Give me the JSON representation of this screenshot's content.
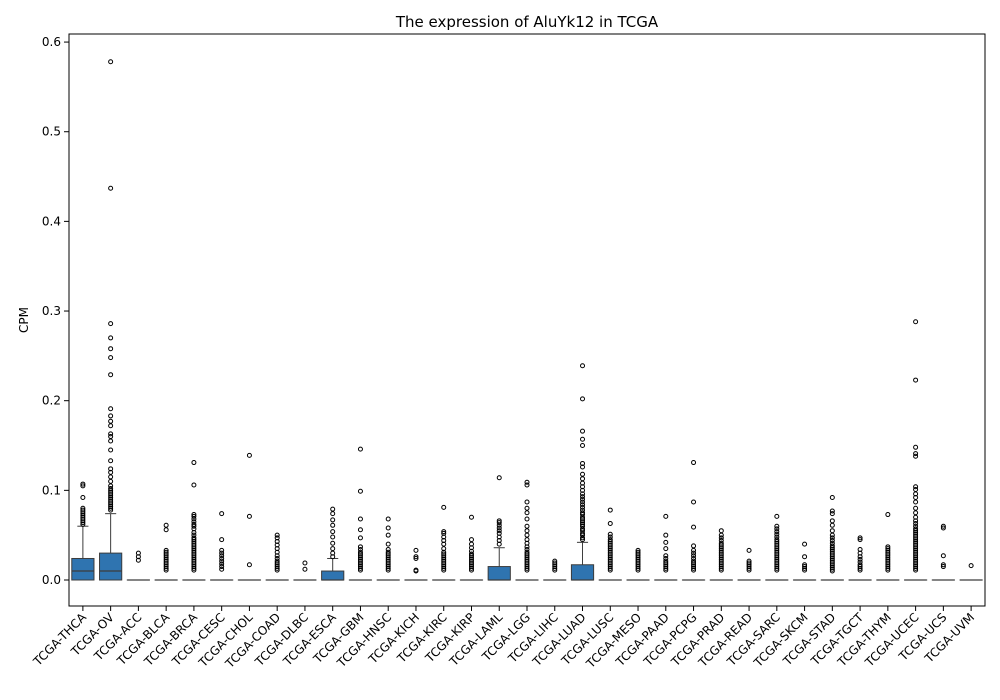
{
  "chart_data": {
    "type": "box",
    "title": "The expression of AluYk12 in TCGA",
    "xlabel": "",
    "ylabel": "CPM",
    "ylim": [
      -0.029,
      0.609
    ],
    "yticks": [
      0.0,
      0.1,
      0.2,
      0.3,
      0.4,
      0.5,
      0.6
    ],
    "ytick_labels": [
      "0.0",
      "0.1",
      "0.2",
      "0.3",
      "0.4",
      "0.5",
      "0.6"
    ],
    "box_color": "#2f74b0",
    "categories": [
      "TCGA-THCA",
      "TCGA-OV",
      "TCGA-ACC",
      "TCGA-BLCA",
      "TCGA-BRCA",
      "TCGA-CESC",
      "TCGA-CHOL",
      "TCGA-COAD",
      "TCGA-DLBC",
      "TCGA-ESCA",
      "TCGA-GBM",
      "TCGA-HNSC",
      "TCGA-KICH",
      "TCGA-KIRC",
      "TCGA-KIRP",
      "TCGA-LAML",
      "TCGA-LGG",
      "TCGA-LIHC",
      "TCGA-LUAD",
      "TCGA-LUSC",
      "TCGA-MESO",
      "TCGA-PAAD",
      "TCGA-PCPG",
      "TCGA-PRAD",
      "TCGA-READ",
      "TCGA-SARC",
      "TCGA-SKCM",
      "TCGA-STAD",
      "TCGA-TGCT",
      "TCGA-THYM",
      "TCGA-UCEC",
      "TCGA-UCS",
      "TCGA-UVM"
    ],
    "boxes": [
      {
        "q1": 0.0,
        "median": 0.01,
        "q3": 0.024,
        "whisker_low": 0.0,
        "whisker_high": 0.06,
        "outliers": [
          0.062,
          0.064,
          0.066,
          0.068,
          0.07,
          0.072,
          0.074,
          0.076,
          0.078,
          0.08,
          0.092,
          0.105,
          0.107
        ]
      },
      {
        "q1": 0.0,
        "median": 0.01,
        "q3": 0.03,
        "whisker_low": 0.0,
        "whisker_high": 0.074,
        "outliers": [
          0.078,
          0.08,
          0.082,
          0.084,
          0.086,
          0.088,
          0.09,
          0.092,
          0.094,
          0.096,
          0.098,
          0.1,
          0.102,
          0.105,
          0.11,
          0.115,
          0.12,
          0.124,
          0.133,
          0.145,
          0.155,
          0.16,
          0.163,
          0.172,
          0.177,
          0.183,
          0.191,
          0.229,
          0.248,
          0.258,
          0.27,
          0.286,
          0.437,
          0.578
        ]
      },
      {
        "q1": 0.0,
        "median": 0.0,
        "q3": 0.0,
        "whisker_low": 0.0,
        "whisker_high": 0.0,
        "outliers": [
          0.022,
          0.026,
          0.03
        ]
      },
      {
        "q1": 0.0,
        "median": 0.0,
        "q3": 0.0,
        "whisker_low": 0.0,
        "whisker_high": 0.0,
        "outliers": [
          0.011,
          0.013,
          0.015,
          0.017,
          0.019,
          0.021,
          0.023,
          0.025,
          0.027,
          0.029,
          0.031,
          0.033,
          0.056,
          0.061
        ]
      },
      {
        "q1": 0.0,
        "median": 0.0,
        "q3": 0.0,
        "whisker_low": 0.0,
        "whisker_high": 0.0,
        "outliers": [
          0.011,
          0.013,
          0.015,
          0.017,
          0.019,
          0.021,
          0.023,
          0.025,
          0.027,
          0.029,
          0.031,
          0.033,
          0.035,
          0.037,
          0.039,
          0.041,
          0.043,
          0.045,
          0.047,
          0.05,
          0.053,
          0.057,
          0.06,
          0.062,
          0.065,
          0.068,
          0.071,
          0.073,
          0.106,
          0.131
        ]
      },
      {
        "q1": 0.0,
        "median": 0.0,
        "q3": 0.0,
        "whisker_low": 0.0,
        "whisker_high": 0.0,
        "outliers": [
          0.012,
          0.015,
          0.018,
          0.021,
          0.024,
          0.027,
          0.03,
          0.033,
          0.045,
          0.074
        ]
      },
      {
        "q1": 0.0,
        "median": 0.0,
        "q3": 0.0,
        "whisker_low": 0.0,
        "whisker_high": 0.0,
        "outliers": [
          0.017,
          0.071,
          0.139
        ]
      },
      {
        "q1": 0.0,
        "median": 0.0,
        "q3": 0.0,
        "whisker_low": 0.0,
        "whisker_high": 0.0,
        "outliers": [
          0.011,
          0.013,
          0.015,
          0.017,
          0.019,
          0.021,
          0.024,
          0.027,
          0.031,
          0.035,
          0.039,
          0.043,
          0.047,
          0.05
        ]
      },
      {
        "q1": 0.0,
        "median": 0.0,
        "q3": 0.0,
        "whisker_low": 0.0,
        "whisker_high": 0.0,
        "outliers": [
          0.012,
          0.019
        ]
      },
      {
        "q1": 0.0,
        "median": 0.0,
        "q3": 0.01,
        "whisker_low": 0.0,
        "whisker_high": 0.024,
        "outliers": [
          0.026,
          0.03,
          0.035,
          0.041,
          0.048,
          0.054,
          0.061,
          0.067,
          0.074,
          0.079
        ]
      },
      {
        "q1": 0.0,
        "median": 0.0,
        "q3": 0.0,
        "whisker_low": 0.0,
        "whisker_high": 0.0,
        "outliers": [
          0.011,
          0.013,
          0.015,
          0.017,
          0.019,
          0.021,
          0.023,
          0.025,
          0.027,
          0.029,
          0.031,
          0.034,
          0.037,
          0.047,
          0.056,
          0.068,
          0.099,
          0.146
        ]
      },
      {
        "q1": 0.0,
        "median": 0.0,
        "q3": 0.0,
        "whisker_low": 0.0,
        "whisker_high": 0.0,
        "outliers": [
          0.011,
          0.013,
          0.015,
          0.017,
          0.019,
          0.021,
          0.023,
          0.025,
          0.027,
          0.029,
          0.031,
          0.034,
          0.04,
          0.05,
          0.058,
          0.068
        ]
      },
      {
        "q1": 0.0,
        "median": 0.0,
        "q3": 0.0,
        "whisker_low": 0.0,
        "whisker_high": 0.0,
        "outliers": [
          0.01,
          0.011,
          0.024,
          0.026,
          0.033
        ]
      },
      {
        "q1": 0.0,
        "median": 0.0,
        "q3": 0.0,
        "whisker_low": 0.0,
        "whisker_high": 0.0,
        "outliers": [
          0.011,
          0.013,
          0.015,
          0.017,
          0.019,
          0.021,
          0.023,
          0.025,
          0.027,
          0.029,
          0.031,
          0.035,
          0.04,
          0.044,
          0.048,
          0.052,
          0.054,
          0.081
        ]
      },
      {
        "q1": 0.0,
        "median": 0.0,
        "q3": 0.0,
        "whisker_low": 0.0,
        "whisker_high": 0.0,
        "outliers": [
          0.011,
          0.013,
          0.015,
          0.017,
          0.019,
          0.021,
          0.023,
          0.025,
          0.027,
          0.029,
          0.032,
          0.036,
          0.04,
          0.045,
          0.07
        ]
      },
      {
        "q1": 0.0,
        "median": 0.0,
        "q3": 0.015,
        "whisker_low": 0.0,
        "whisker_high": 0.036,
        "outliers": [
          0.04,
          0.044,
          0.048,
          0.052,
          0.055,
          0.058,
          0.061,
          0.064,
          0.066,
          0.114
        ]
      },
      {
        "q1": 0.0,
        "median": 0.0,
        "q3": 0.0,
        "whisker_low": 0.0,
        "whisker_high": 0.0,
        "outliers": [
          0.011,
          0.013,
          0.015,
          0.017,
          0.019,
          0.021,
          0.023,
          0.025,
          0.027,
          0.029,
          0.031,
          0.034,
          0.037,
          0.041,
          0.045,
          0.05,
          0.055,
          0.06,
          0.068,
          0.075,
          0.08,
          0.087,
          0.106,
          0.109
        ]
      },
      {
        "q1": 0.0,
        "median": 0.0,
        "q3": 0.0,
        "whisker_low": 0.0,
        "whisker_high": 0.0,
        "outliers": [
          0.011,
          0.013,
          0.015,
          0.017,
          0.019,
          0.021
        ]
      },
      {
        "q1": 0.0,
        "median": 0.0,
        "q3": 0.017,
        "whisker_low": 0.0,
        "whisker_high": 0.042,
        "outliers": [
          0.045,
          0.047,
          0.05,
          0.052,
          0.055,
          0.057,
          0.06,
          0.062,
          0.064,
          0.066,
          0.068,
          0.07,
          0.073,
          0.075,
          0.078,
          0.081,
          0.084,
          0.087,
          0.09,
          0.093,
          0.096,
          0.1,
          0.104,
          0.108,
          0.113,
          0.118,
          0.126,
          0.13,
          0.15,
          0.157,
          0.166,
          0.202,
          0.239
        ]
      },
      {
        "q1": 0.0,
        "median": 0.0,
        "q3": 0.0,
        "whisker_low": 0.0,
        "whisker_high": 0.0,
        "outliers": [
          0.011,
          0.013,
          0.015,
          0.017,
          0.019,
          0.021,
          0.023,
          0.025,
          0.027,
          0.029,
          0.031,
          0.033,
          0.035,
          0.037,
          0.039,
          0.041,
          0.043,
          0.045,
          0.048,
          0.051,
          0.063,
          0.078
        ]
      },
      {
        "q1": 0.0,
        "median": 0.0,
        "q3": 0.0,
        "whisker_low": 0.0,
        "whisker_high": 0.0,
        "outliers": [
          0.011,
          0.013,
          0.015,
          0.017,
          0.019,
          0.021,
          0.023,
          0.025,
          0.027,
          0.029,
          0.031,
          0.033
        ]
      },
      {
        "q1": 0.0,
        "median": 0.0,
        "q3": 0.0,
        "whisker_low": 0.0,
        "whisker_high": 0.0,
        "outliers": [
          0.011,
          0.013,
          0.015,
          0.017,
          0.019,
          0.021,
          0.024,
          0.027,
          0.035,
          0.042,
          0.05,
          0.071
        ]
      },
      {
        "q1": 0.0,
        "median": 0.0,
        "q3": 0.0,
        "whisker_low": 0.0,
        "whisker_high": 0.0,
        "outliers": [
          0.011,
          0.013,
          0.015,
          0.017,
          0.019,
          0.021,
          0.024,
          0.027,
          0.03,
          0.033,
          0.038,
          0.059,
          0.087,
          0.131
        ]
      },
      {
        "q1": 0.0,
        "median": 0.0,
        "q3": 0.0,
        "whisker_low": 0.0,
        "whisker_high": 0.0,
        "outliers": [
          0.011,
          0.013,
          0.015,
          0.017,
          0.019,
          0.021,
          0.023,
          0.025,
          0.027,
          0.029,
          0.031,
          0.033,
          0.035,
          0.037,
          0.039,
          0.041,
          0.044,
          0.047,
          0.05,
          0.055
        ]
      },
      {
        "q1": 0.0,
        "median": 0.0,
        "q3": 0.0,
        "whisker_low": 0.0,
        "whisker_high": 0.0,
        "outliers": [
          0.011,
          0.013,
          0.015,
          0.017,
          0.019,
          0.021,
          0.033
        ]
      },
      {
        "q1": 0.0,
        "median": 0.0,
        "q3": 0.0,
        "whisker_low": 0.0,
        "whisker_high": 0.0,
        "outliers": [
          0.011,
          0.013,
          0.015,
          0.017,
          0.019,
          0.021,
          0.023,
          0.025,
          0.027,
          0.029,
          0.031,
          0.033,
          0.035,
          0.037,
          0.039,
          0.041,
          0.043,
          0.045,
          0.048,
          0.051,
          0.054,
          0.057,
          0.06,
          0.071
        ]
      },
      {
        "q1": 0.0,
        "median": 0.0,
        "q3": 0.0,
        "whisker_low": 0.0,
        "whisker_high": 0.0,
        "outliers": [
          0.011,
          0.013,
          0.015,
          0.017,
          0.026,
          0.04
        ]
      },
      {
        "q1": 0.0,
        "median": 0.0,
        "q3": 0.0,
        "whisker_low": 0.0,
        "whisker_high": 0.0,
        "outliers": [
          0.01,
          0.012,
          0.014,
          0.016,
          0.018,
          0.02,
          0.022,
          0.024,
          0.026,
          0.028,
          0.03,
          0.032,
          0.034,
          0.036,
          0.038,
          0.041,
          0.044,
          0.047,
          0.05,
          0.055,
          0.061,
          0.066,
          0.074,
          0.077,
          0.092
        ]
      },
      {
        "q1": 0.0,
        "median": 0.0,
        "q3": 0.0,
        "whisker_low": 0.0,
        "whisker_high": 0.0,
        "outliers": [
          0.011,
          0.013,
          0.015,
          0.017,
          0.02,
          0.023,
          0.026,
          0.03,
          0.034,
          0.045,
          0.047
        ]
      },
      {
        "q1": 0.0,
        "median": 0.0,
        "q3": 0.0,
        "whisker_low": 0.0,
        "whisker_high": 0.0,
        "outliers": [
          0.011,
          0.013,
          0.015,
          0.017,
          0.019,
          0.021,
          0.023,
          0.025,
          0.027,
          0.029,
          0.031,
          0.033,
          0.035,
          0.037,
          0.073
        ]
      },
      {
        "q1": 0.0,
        "median": 0.0,
        "q3": 0.0,
        "whisker_low": 0.0,
        "whisker_high": 0.0,
        "outliers": [
          0.011,
          0.013,
          0.015,
          0.017,
          0.019,
          0.021,
          0.023,
          0.025,
          0.027,
          0.029,
          0.031,
          0.033,
          0.035,
          0.037,
          0.039,
          0.041,
          0.043,
          0.045,
          0.047,
          0.049,
          0.051,
          0.053,
          0.055,
          0.057,
          0.06,
          0.063,
          0.066,
          0.07,
          0.075,
          0.08,
          0.087,
          0.092,
          0.096,
          0.101,
          0.104,
          0.138,
          0.141,
          0.148,
          0.223,
          0.288
        ]
      },
      {
        "q1": 0.0,
        "median": 0.0,
        "q3": 0.0,
        "whisker_low": 0.0,
        "whisker_high": 0.0,
        "outliers": [
          0.015,
          0.017,
          0.027,
          0.058,
          0.06
        ]
      },
      {
        "q1": 0.0,
        "median": 0.0,
        "q3": 0.0,
        "whisker_low": 0.0,
        "whisker_high": 0.0,
        "outliers": [
          0.016
        ]
      }
    ]
  }
}
